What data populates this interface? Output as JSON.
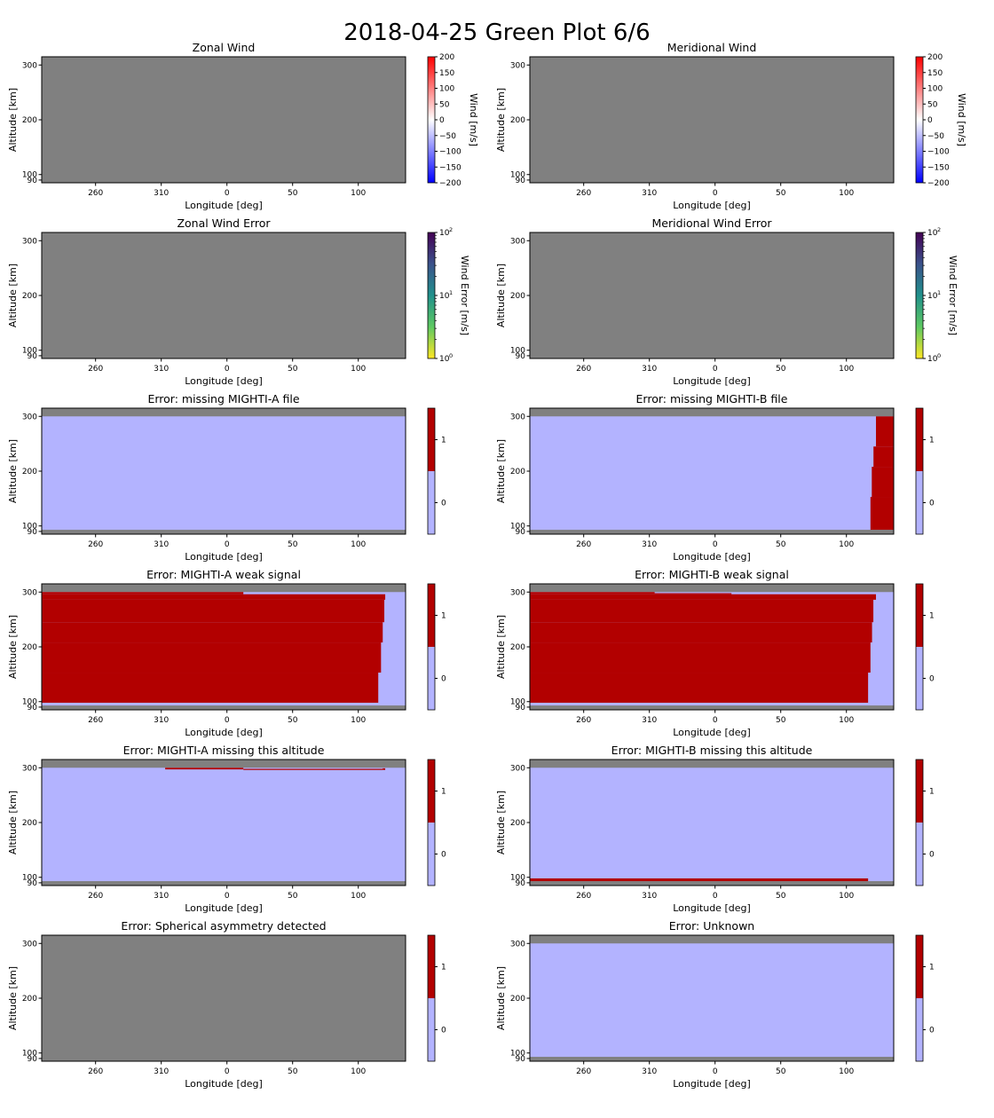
{
  "figure": {
    "title": "2018-04-25 Green Plot 6/6"
  },
  "colors": {
    "nodata": "#808080",
    "flag0": "#b3b3ff",
    "flag1": "#b20000",
    "frame": "#000000"
  },
  "axes_common": {
    "xlabel": "Longitude [deg]",
    "ylabel": "Altitude [km]",
    "xticks": [
      "260",
      "310",
      "0",
      "50",
      "100"
    ],
    "yticks": [
      "90",
      "100",
      "200",
      "300"
    ]
  },
  "colorbars": {
    "wind": {
      "label": "Wind [m/s]",
      "ticks": [
        "−200",
        "−150",
        "−100",
        "−50",
        "0",
        "50",
        "100",
        "150",
        "200"
      ],
      "range": [
        -200,
        200
      ],
      "colormap": "bwr"
    },
    "error": {
      "label": "Wind Error [m/s]",
      "ticks_base": [
        "10",
        "10",
        "10"
      ],
      "ticks_exp": [
        "0",
        "1",
        "2"
      ],
      "range": [
        1,
        100
      ],
      "scale": "log",
      "colormap": "viridis_r"
    },
    "flag": {
      "ticks": [
        "0",
        "1"
      ],
      "range": [
        0,
        1
      ]
    }
  },
  "chart_data": [
    {
      "type": "heatmap",
      "title": "Zonal Wind",
      "colorbar": "wind",
      "data": "no data"
    },
    {
      "type": "heatmap",
      "title": "Meridional Wind",
      "colorbar": "wind",
      "data": "no data"
    },
    {
      "type": "heatmap",
      "title": "Zonal Wind Error",
      "colorbar": "error",
      "data": "no data"
    },
    {
      "type": "heatmap",
      "title": "Meridional Wind Error",
      "colorbar": "error",
      "data": "no data"
    },
    {
      "type": "heatmap",
      "title": "Error: missing MIGHTI-A file",
      "colorbar": "flag",
      "background": 0,
      "flag_regions": []
    },
    {
      "type": "heatmap",
      "title": "Error: missing MIGHTI-B file",
      "colorbar": "flag",
      "background": 0,
      "flag_regions": [
        {
          "lon_from": 118.3,
          "lon_to": 136,
          "alt_from": 93,
          "alt_to": 153
        },
        {
          "lon_from": 119.3,
          "lon_to": 136,
          "alt_from": 153,
          "alt_to": 208
        },
        {
          "lon_from": 120.6,
          "lon_to": 136,
          "alt_from": 208,
          "alt_to": 245
        },
        {
          "lon_from": 122.5,
          "lon_to": 136,
          "alt_from": 245,
          "alt_to": 300
        }
      ]
    },
    {
      "type": "heatmap",
      "title": "Error: MIGHTI-A weak signal",
      "colorbar": "flag",
      "background": 0,
      "flag_regions": [
        {
          "lon_from": -141,
          "lon_to": 115.2,
          "alt_from": 98,
          "alt_to": 153
        },
        {
          "lon_from": -141,
          "lon_to": 117.3,
          "alt_from": 153,
          "alt_to": 208
        },
        {
          "lon_from": -141,
          "lon_to": 118.6,
          "alt_from": 208,
          "alt_to": 245
        },
        {
          "lon_from": -141,
          "lon_to": 119.8,
          "alt_from": 245,
          "alt_to": 286
        },
        {
          "lon_from": -141,
          "lon_to": 120.5,
          "alt_from": 286,
          "alt_to": 296
        },
        {
          "lon_from": -141,
          "lon_to": 12.5,
          "alt_from": 296,
          "alt_to": 300
        }
      ]
    },
    {
      "type": "heatmap",
      "title": "Error: MIGHTI-B weak signal",
      "colorbar": "flag",
      "background": 0,
      "flag_regions": [
        {
          "lon_from": -141,
          "lon_to": 116.5,
          "alt_from": 98,
          "alt_to": 153
        },
        {
          "lon_from": -141,
          "lon_to": 118.3,
          "alt_from": 153,
          "alt_to": 208
        },
        {
          "lon_from": -141,
          "lon_to": 119.5,
          "alt_from": 208,
          "alt_to": 245
        },
        {
          "lon_from": -141,
          "lon_to": 120.5,
          "alt_from": 245,
          "alt_to": 286
        },
        {
          "lon_from": -141,
          "lon_to": 122.5,
          "alt_from": 286,
          "alt_to": 296
        },
        {
          "lon_from": -141,
          "lon_to": 12.5,
          "alt_from": 296,
          "alt_to": 298
        },
        {
          "lon_from": -141,
          "lon_to": -46,
          "alt_from": 298,
          "alt_to": 300
        }
      ]
    },
    {
      "type": "heatmap",
      "title": "Error: MIGHTI-A missing this altitude",
      "colorbar": "flag",
      "background": 0,
      "flag_regions": [
        {
          "lon_from": -47,
          "lon_to": 12.5,
          "alt_from": 297,
          "alt_to": 300
        },
        {
          "lon_from": 12.5,
          "lon_to": 118.5,
          "alt_from": 296,
          "alt_to": 298
        },
        {
          "lon_from": 118.5,
          "lon_to": 120.5,
          "alt_from": 296,
          "alt_to": 299
        }
      ]
    },
    {
      "type": "heatmap",
      "title": "Error: MIGHTI-B missing this altitude",
      "colorbar": "flag",
      "background": 0,
      "flag_regions": [
        {
          "lon_from": -141,
          "lon_to": 116.5,
          "alt_from": 93,
          "alt_to": 98
        }
      ]
    },
    {
      "type": "heatmap",
      "title": "Error: Spherical asymmetry detected",
      "colorbar": "flag",
      "data": "no data"
    },
    {
      "type": "heatmap",
      "title": "Error: Unknown",
      "colorbar": "flag",
      "background": 0,
      "flag_regions": []
    }
  ]
}
